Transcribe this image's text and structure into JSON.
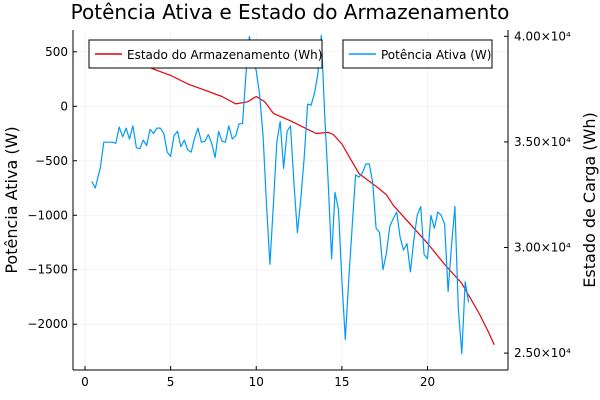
{
  "chart_data": {
    "type": "line",
    "title": "Potência Ativa e Estado do Armazenamento",
    "xlabel": "",
    "ylabel_left": "Potência Ativa (W)",
    "ylabel_right": "Estado de Carga (Wh)",
    "xlim": [
      -0.7,
      24.7
    ],
    "ylim_left": [
      -2420,
      700
    ],
    "ylim_right": [
      24200,
      40300
    ],
    "x_ticks": [
      0,
      5,
      10,
      15,
      20
    ],
    "y_left_ticks": [
      500,
      0,
      -500,
      -1000,
      -1500,
      -2000
    ],
    "y_left_tick_labels": [
      "500",
      "0",
      "−500",
      "−1000",
      "−1500",
      "−2000"
    ],
    "y_right_ticks": [
      40000,
      35000,
      30000,
      25000
    ],
    "y_right_tick_labels": [
      "4.00×10⁴",
      "3.50×10⁴",
      "3.00×10⁴",
      "2.50×10⁴"
    ],
    "grid": true,
    "legend_placement": "top",
    "series": [
      {
        "name": "Estado do Armazenamento (Wh)",
        "axis": "right",
        "color": "#e6000a",
        "points": [
          [
            0.3,
            39800
          ],
          [
            1,
            39600
          ],
          [
            2,
            39200
          ],
          [
            3,
            38800
          ],
          [
            4,
            38450
          ],
          [
            5,
            38150
          ],
          [
            6,
            37750
          ],
          [
            7,
            37450
          ],
          [
            8,
            37150
          ],
          [
            8.8,
            36800
          ],
          [
            9.5,
            36900
          ],
          [
            10,
            37150
          ],
          [
            10.5,
            36900
          ],
          [
            11,
            36350
          ],
          [
            12,
            36000
          ],
          [
            13,
            35600
          ],
          [
            13.5,
            35400
          ],
          [
            14.2,
            35450
          ],
          [
            14.5,
            35350
          ],
          [
            15,
            34900
          ],
          [
            15.5,
            34200
          ],
          [
            16,
            33500
          ],
          [
            17,
            32900
          ],
          [
            17.6,
            32500
          ],
          [
            18,
            32000
          ],
          [
            19,
            31100
          ],
          [
            20,
            30200
          ],
          [
            21,
            29200
          ],
          [
            22,
            28300
          ],
          [
            23,
            26900
          ],
          [
            23.5,
            26100
          ],
          [
            23.9,
            25400
          ]
        ]
      },
      {
        "name": "Potência Ativa (W)",
        "axis": "left",
        "color": "#009af9",
        "points": [
          [
            0.4,
            -690
          ],
          [
            0.6,
            -750
          ],
          [
            0.9,
            -560
          ],
          [
            1.1,
            -330
          ],
          [
            1.4,
            -330
          ],
          [
            1.6,
            -330
          ],
          [
            1.8,
            -340
          ],
          [
            2.0,
            -190
          ],
          [
            2.2,
            -280
          ],
          [
            2.4,
            -200
          ],
          [
            2.6,
            -300
          ],
          [
            2.8,
            -180
          ],
          [
            3.0,
            -380
          ],
          [
            3.2,
            -390
          ],
          [
            3.4,
            -310
          ],
          [
            3.6,
            -360
          ],
          [
            3.8,
            -210
          ],
          [
            4.0,
            -250
          ],
          [
            4.2,
            -200
          ],
          [
            4.4,
            -200
          ],
          [
            4.6,
            -250
          ],
          [
            4.8,
            -420
          ],
          [
            5.0,
            -460
          ],
          [
            5.2,
            -270
          ],
          [
            5.4,
            -230
          ],
          [
            5.6,
            -370
          ],
          [
            5.8,
            -310
          ],
          [
            6.0,
            -400
          ],
          [
            6.2,
            -420
          ],
          [
            6.4,
            -290
          ],
          [
            6.6,
            -200
          ],
          [
            6.8,
            -330
          ],
          [
            7.0,
            -320
          ],
          [
            7.2,
            -260
          ],
          [
            7.4,
            -340
          ],
          [
            7.6,
            -470
          ],
          [
            7.8,
            -230
          ],
          [
            8.0,
            -320
          ],
          [
            8.2,
            -330
          ],
          [
            8.4,
            -180
          ],
          [
            8.6,
            -300
          ],
          [
            8.8,
            -270
          ],
          [
            9.0,
            -160
          ],
          [
            9.2,
            -160
          ],
          [
            9.4,
            300
          ],
          [
            9.6,
            640
          ],
          [
            9.8,
            440
          ],
          [
            10.0,
            330
          ],
          [
            10.2,
            100
          ],
          [
            10.4,
            -280
          ],
          [
            10.6,
            -900
          ],
          [
            10.8,
            -1450
          ],
          [
            11.0,
            -900
          ],
          [
            11.2,
            -330
          ],
          [
            11.4,
            -140
          ],
          [
            11.6,
            -570
          ],
          [
            11.8,
            -230
          ],
          [
            12.0,
            -180
          ],
          [
            12.2,
            -700
          ],
          [
            12.4,
            -1160
          ],
          [
            12.6,
            -850
          ],
          [
            12.8,
            -470
          ],
          [
            13.0,
            20
          ],
          [
            13.2,
            10
          ],
          [
            13.4,
            120
          ],
          [
            13.6,
            300
          ],
          [
            13.8,
            650
          ],
          [
            14.0,
            -100
          ],
          [
            14.2,
            -700
          ],
          [
            14.4,
            -1400
          ],
          [
            14.6,
            -790
          ],
          [
            14.8,
            -950
          ],
          [
            15.0,
            -1600
          ],
          [
            15.2,
            -2140
          ],
          [
            15.4,
            -1600
          ],
          [
            15.6,
            -1100
          ],
          [
            15.8,
            -630
          ],
          [
            16.0,
            -650
          ],
          [
            16.2,
            -610
          ],
          [
            16.4,
            -530
          ],
          [
            16.6,
            -530
          ],
          [
            16.8,
            -700
          ],
          [
            17.0,
            -1120
          ],
          [
            17.2,
            -1160
          ],
          [
            17.4,
            -1500
          ],
          [
            17.6,
            -1350
          ],
          [
            17.8,
            -1100
          ],
          [
            18.0,
            -1030
          ],
          [
            18.2,
            -970
          ],
          [
            18.4,
            -1200
          ],
          [
            18.6,
            -1320
          ],
          [
            18.8,
            -1260
          ],
          [
            19.0,
            -1520
          ],
          [
            19.2,
            -1230
          ],
          [
            19.4,
            -1000
          ],
          [
            19.6,
            -920
          ],
          [
            19.8,
            -1360
          ],
          [
            20.0,
            -1400
          ],
          [
            20.2,
            -1000
          ],
          [
            20.4,
            -1120
          ],
          [
            20.6,
            -970
          ],
          [
            20.8,
            -1000
          ],
          [
            21.0,
            -1080
          ],
          [
            21.2,
            -1700
          ],
          [
            21.4,
            -1280
          ],
          [
            21.6,
            -920
          ],
          [
            21.8,
            -1850
          ],
          [
            22.0,
            -2270
          ],
          [
            22.2,
            -1610
          ],
          [
            22.4,
            -1800
          ]
        ]
      }
    ]
  }
}
